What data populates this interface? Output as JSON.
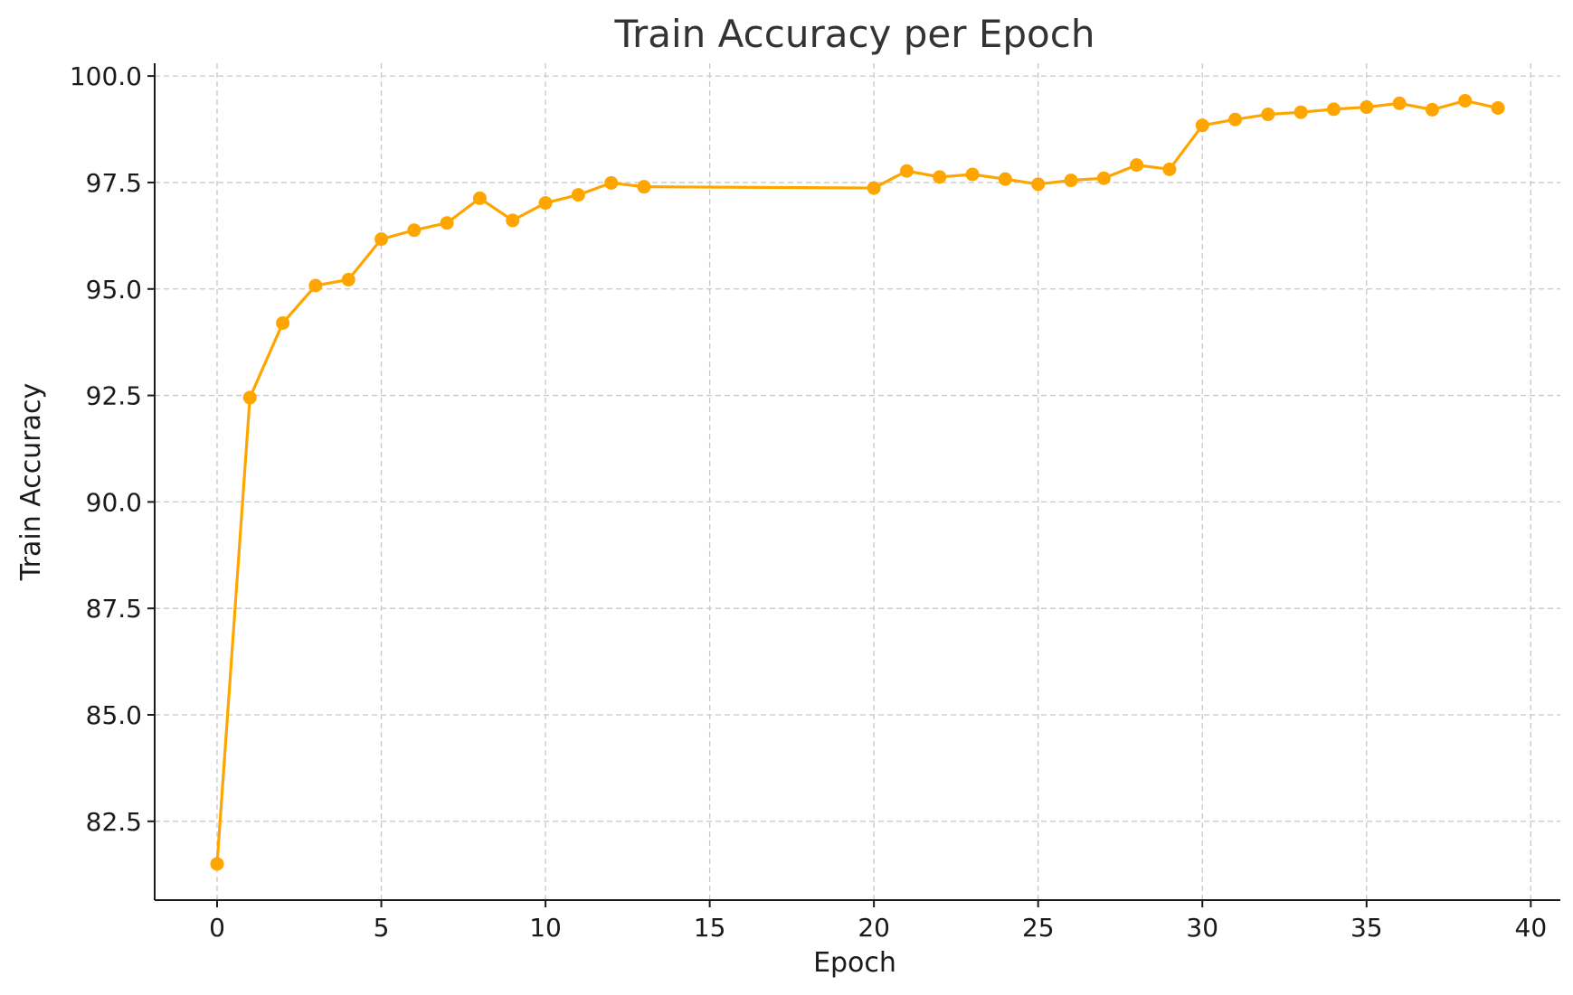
{
  "chart_data": {
    "type": "line",
    "title": "Train Accuracy per Epoch",
    "xlabel": "Epoch",
    "ylabel": "Train Accuracy",
    "xlim": [
      -1.9,
      40.9
    ],
    "ylim": [
      80.65,
      100.3
    ],
    "xticks": [
      0,
      5,
      10,
      15,
      20,
      25,
      30,
      35,
      40
    ],
    "yticks": [
      82.5,
      85.0,
      87.5,
      90.0,
      92.5,
      95.0,
      97.5,
      100.0
    ],
    "xtick_labels": [
      "0",
      "5",
      "10",
      "15",
      "20",
      "25",
      "30",
      "35",
      "40"
    ],
    "ytick_labels": [
      "82.5",
      "85.0",
      "87.5",
      "90.0",
      "92.5",
      "95.0",
      "97.5",
      "100.0"
    ],
    "grid": true,
    "series": [
      {
        "color": "#FFA500",
        "marker": "circle",
        "x": [
          0,
          1,
          2,
          3,
          4,
          5,
          6,
          7,
          8,
          9,
          10,
          11,
          12,
          13,
          20,
          21,
          22,
          23,
          24,
          25,
          26,
          27,
          28,
          29,
          30,
          31,
          32,
          33,
          34,
          35,
          36,
          37,
          38,
          39
        ],
        "y": [
          81.5,
          92.45,
          94.2,
          95.08,
          95.22,
          96.17,
          96.38,
          96.55,
          97.13,
          96.61,
          97.02,
          97.21,
          97.49,
          97.4,
          97.37,
          97.77,
          97.63,
          97.69,
          97.58,
          97.46,
          97.55,
          97.6,
          97.91,
          97.81,
          98.84,
          98.98,
          99.1,
          99.15,
          99.22,
          99.27,
          99.36,
          99.21,
          99.42,
          99.25
        ]
      }
    ]
  }
}
